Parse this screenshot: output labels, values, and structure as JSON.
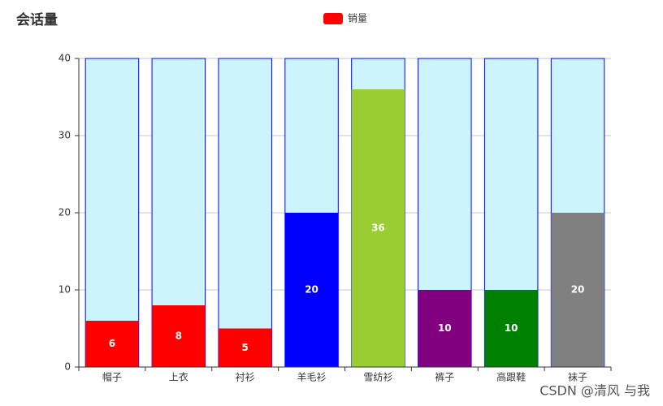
{
  "chart_data": {
    "type": "bar",
    "title": "会话量",
    "categories": [
      "帽子",
      "上衣",
      "衬衫",
      "羊毛衫",
      "雪纺衫",
      "裤子",
      "高跟鞋",
      "袜子"
    ],
    "series": [
      {
        "name": "销量",
        "color": "#ff0000",
        "values": [
          6,
          8,
          5,
          20,
          36,
          10,
          10,
          20
        ],
        "colors": [
          "#ff0000",
          "#ff0000",
          "#ff0000",
          "#0000ff",
          "#9acd32",
          "#800080",
          "#008000",
          "#808080"
        ]
      }
    ],
    "ylim": [
      0,
      40
    ],
    "yticks": [
      0,
      10,
      20,
      30,
      40
    ],
    "grid": true,
    "watermark": "CSDN @清风 与我"
  }
}
